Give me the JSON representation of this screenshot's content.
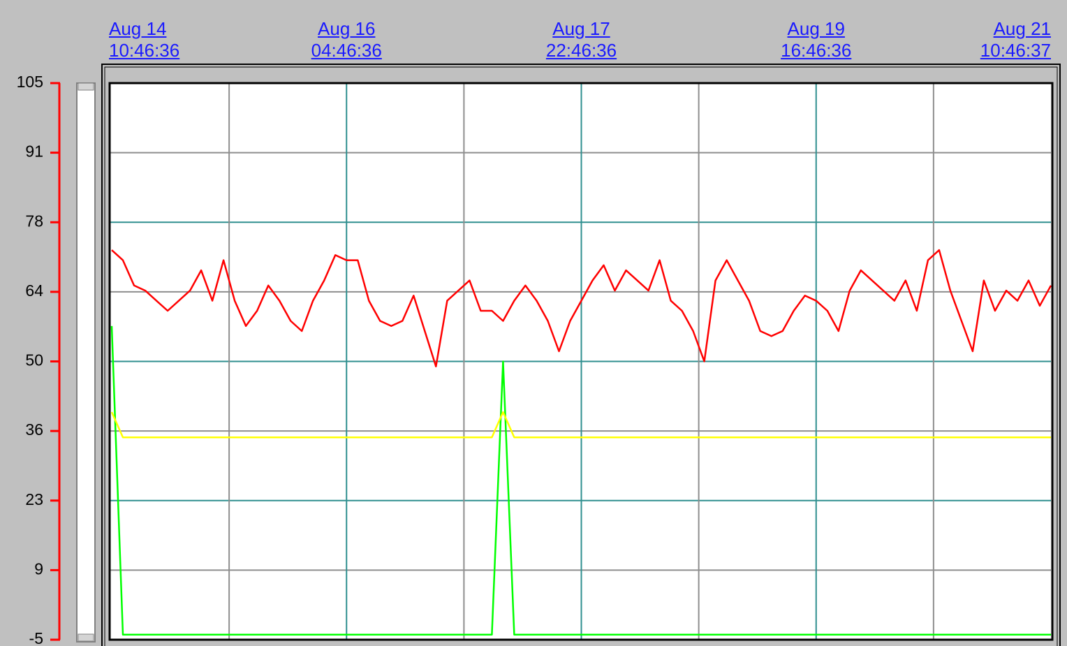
{
  "chart_data": {
    "type": "line",
    "xlim": [
      "Aug 14 10:46:36",
      "Aug 21 10:46:37"
    ],
    "xticks": [
      "Aug 14 10:46:36",
      "Aug 16 04:46:36",
      "Aug 17 22:46:36",
      "Aug 19 16:46:36",
      "Aug 21 10:46:37"
    ],
    "ylim": [
      -5,
      105
    ],
    "yticks": [
      -5,
      {
        "value": 8.75,
        "label": "9"
      },
      {
        "value": 22.5,
        "label": "23"
      },
      {
        "value": 36.25,
        "label": "36"
      },
      50,
      {
        "value": 63.75,
        "label": "64"
      },
      {
        "value": 77.5,
        "label": "78"
      },
      {
        "value": 91.25,
        "label": "91"
      },
      105
    ],
    "grid": true,
    "axis_color": "#ff0000",
    "x": [
      "Aug 14 10:46:36",
      "Aug 14 12:46:36",
      "Aug 14 14:46:36",
      "Aug 14 16:46:36",
      "Aug 14 18:46:36",
      "Aug 14 20:46:36",
      "Aug 14 22:46:36",
      "Aug 15 00:46:36",
      "Aug 15 02:46:36",
      "Aug 15 04:46:36",
      "Aug 15 06:46:36",
      "Aug 15 08:46:36",
      "Aug 15 10:46:36",
      "Aug 15 12:46:36",
      "Aug 15 14:46:36",
      "Aug 15 16:46:36",
      "Aug 15 18:46:36",
      "Aug 15 20:46:36",
      "Aug 15 22:46:36",
      "Aug 16 00:46:36",
      "Aug 16 02:46:36",
      "Aug 16 04:46:36",
      "Aug 16 06:46:36",
      "Aug 16 08:46:36",
      "Aug 16 10:46:36",
      "Aug 16 12:46:36",
      "Aug 16 14:46:36",
      "Aug 16 16:46:36",
      "Aug 16 18:46:36",
      "Aug 16 20:46:36",
      "Aug 16 22:46:36",
      "Aug 17 00:46:36",
      "Aug 17 02:46:36",
      "Aug 17 04:46:36",
      "Aug 17 06:46:36",
      "Aug 17 08:46:36",
      "Aug 17 10:46:36",
      "Aug 17 12:46:36",
      "Aug 17 14:46:36",
      "Aug 17 16:46:36",
      "Aug 17 18:46:36",
      "Aug 17 20:46:36",
      "Aug 17 22:46:36",
      "Aug 18 00:46:36",
      "Aug 18 02:46:36",
      "Aug 18 04:46:36",
      "Aug 18 06:46:36",
      "Aug 18 08:46:36",
      "Aug 18 10:46:36",
      "Aug 18 12:46:36",
      "Aug 18 14:46:36",
      "Aug 18 16:46:36",
      "Aug 18 18:46:36",
      "Aug 18 20:46:36",
      "Aug 18 22:46:36",
      "Aug 19 00:46:36",
      "Aug 19 02:46:36",
      "Aug 19 04:46:36",
      "Aug 19 06:46:36",
      "Aug 19 08:46:36",
      "Aug 19 10:46:36",
      "Aug 19 12:46:36",
      "Aug 19 14:46:36",
      "Aug 19 16:46:36",
      "Aug 19 18:46:36",
      "Aug 19 20:46:36",
      "Aug 19 22:46:36",
      "Aug 20 00:46:36",
      "Aug 20 02:46:36",
      "Aug 20 04:46:36",
      "Aug 20 06:46:36",
      "Aug 20 08:46:36",
      "Aug 20 10:46:36",
      "Aug 20 12:46:36",
      "Aug 20 14:46:36",
      "Aug 20 16:46:36",
      "Aug 20 18:46:36",
      "Aug 20 20:46:36",
      "Aug 20 22:46:36",
      "Aug 21 00:46:36",
      "Aug 21 02:46:36",
      "Aug 21 04:46:36",
      "Aug 21 06:46:36",
      "Aug 21 08:46:36",
      "Aug 21 10:46:36"
    ],
    "series": [
      {
        "color": "#ff0000",
        "values": [
          72,
          70,
          65,
          64,
          62,
          60,
          62,
          64,
          68,
          62,
          70,
          62,
          57,
          60,
          65,
          62,
          58,
          56,
          62,
          66,
          71,
          70,
          70,
          62,
          58,
          57,
          58,
          63,
          56,
          49,
          62,
          64,
          66,
          60,
          60,
          58,
          62,
          65,
          62,
          58,
          52,
          58,
          62,
          66,
          69,
          64,
          68,
          66,
          64,
          70,
          62,
          60,
          56,
          50,
          66,
          70,
          66,
          62,
          56,
          55,
          56,
          60,
          63,
          62,
          60,
          56,
          64,
          68,
          66,
          64,
          62,
          66,
          60,
          70,
          72,
          64,
          58,
          52,
          66,
          60,
          64,
          62,
          66,
          61,
          65
        ]
      },
      {
        "color": "#ffff00",
        "values": [
          40,
          35,
          35,
          35,
          35,
          35,
          35,
          35,
          35,
          35,
          35,
          35,
          35,
          35,
          35,
          35,
          35,
          35,
          35,
          35,
          35,
          35,
          35,
          35,
          35,
          35,
          35,
          35,
          35,
          35,
          35,
          35,
          35,
          35,
          35,
          40,
          35,
          35,
          35,
          35,
          35,
          35,
          35,
          35,
          35,
          35,
          35,
          35,
          35,
          35,
          35,
          35,
          35,
          35,
          35,
          35,
          35,
          35,
          35,
          35,
          35,
          35,
          35,
          35,
          35,
          35,
          35,
          35,
          35,
          35,
          35,
          35,
          35,
          35,
          35,
          35,
          35,
          35,
          35,
          35,
          35,
          35,
          35,
          35,
          35
        ]
      },
      {
        "color": "#00ff00",
        "values": [
          57,
          -4,
          -4,
          -4,
          -4,
          -4,
          -4,
          -4,
          -4,
          -4,
          -4,
          -4,
          -4,
          -4,
          -4,
          -4,
          -4,
          -4,
          -4,
          -4,
          -4,
          -4,
          -4,
          -4,
          -4,
          -4,
          -4,
          -4,
          -4,
          -4,
          -4,
          -4,
          -4,
          -4,
          -4,
          50,
          -4,
          -4,
          -4,
          -4,
          -4,
          -4,
          -4,
          -4,
          -4,
          -4,
          -4,
          -4,
          -4,
          -4,
          -4,
          -4,
          -4,
          -4,
          -4,
          -4,
          -4,
          -4,
          -4,
          -4,
          -4,
          -4,
          -4,
          -4,
          -4,
          -4,
          -4,
          -4,
          -4,
          -4,
          -4,
          -4,
          -4,
          -4,
          -4,
          -4,
          -4,
          -4,
          -4,
          -4,
          -4,
          -4,
          -4,
          -4,
          -4
        ]
      }
    ]
  }
}
